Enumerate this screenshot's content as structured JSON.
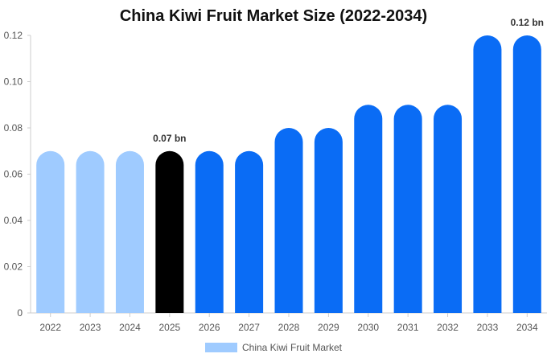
{
  "chart_data": {
    "type": "bar",
    "title": "China Kiwi Fruit Market Size (2022-2034)",
    "categories": [
      "2022",
      "2023",
      "2024",
      "2025",
      "2026",
      "2027",
      "2028",
      "2029",
      "2030",
      "2031",
      "2032",
      "2033",
      "2034"
    ],
    "series": [
      {
        "name": "China Kiwi Fruit Market",
        "values": [
          0.07,
          0.07,
          0.07,
          0.07,
          0.07,
          0.07,
          0.08,
          0.08,
          0.09,
          0.09,
          0.09,
          0.12,
          0.12
        ]
      }
    ],
    "bar_colors": [
      "#9fcbff",
      "#9fcbff",
      "#9fcbff",
      "#000000",
      "#0a6cf5",
      "#0a6cf5",
      "#0a6cf5",
      "#0a6cf5",
      "#0a6cf5",
      "#0a6cf5",
      "#0a6cf5",
      "#0a6cf5",
      "#0a6cf5"
    ],
    "data_labels": [
      {
        "category": "2025",
        "text": "0.07 bn"
      },
      {
        "category": "2034",
        "text": "0.12 bn"
      }
    ],
    "yticks": [
      "0",
      "0.02",
      "0.04",
      "0.06",
      "0.08",
      "0.10",
      "0.12"
    ],
    "ylim": [
      0,
      0.12
    ],
    "grid": false,
    "legend_position": "bottom-center",
    "legend_color": "#9fcbff"
  }
}
